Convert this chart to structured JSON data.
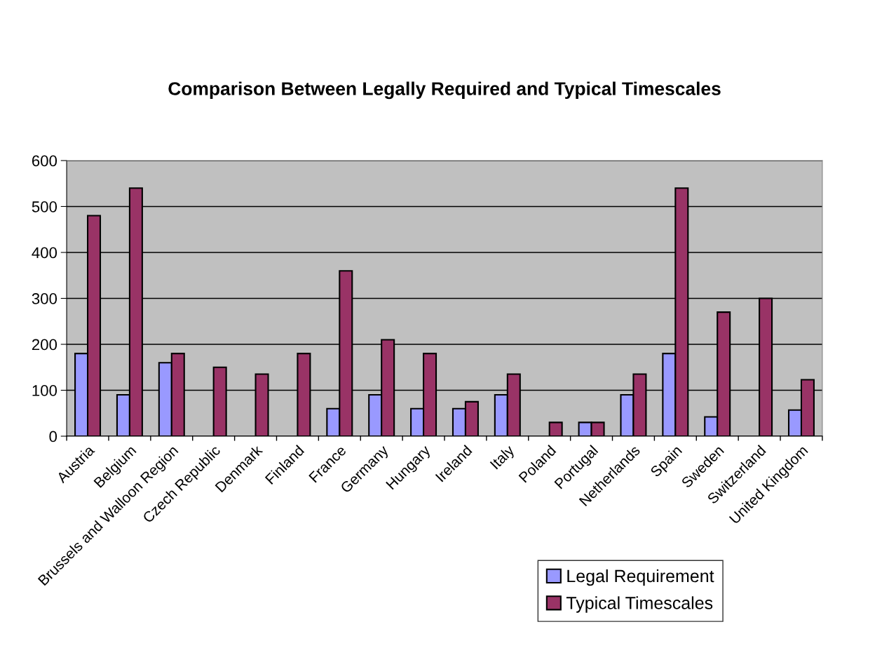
{
  "chart_data": {
    "type": "bar",
    "title": "Comparison Between Legally Required and Typical Timescales",
    "categories": [
      "Austria",
      "Belgium",
      "Brussels and Walloon Region",
      "Czech Republic",
      "Denmark",
      "Finland",
      "France",
      "Germany",
      "Hungary",
      "Ireland",
      "Italy",
      "Poland",
      "Portugal",
      "Netherlands",
      "Spain",
      "Sweden",
      "Switzerland",
      "United Kingdom"
    ],
    "series": [
      {
        "name": "Legal Requirement",
        "color": "#9999ff",
        "values": [
          180,
          90,
          160,
          null,
          null,
          null,
          60,
          90,
          60,
          60,
          90,
          null,
          30,
          90,
          180,
          42,
          null,
          57
        ]
      },
      {
        "name": "Typical Timescales",
        "color": "#993366",
        "values": [
          480,
          540,
          180,
          150,
          135,
          180,
          360,
          210,
          180,
          75,
          135,
          30,
          30,
          135,
          540,
          270,
          300,
          123
        ]
      }
    ],
    "ylim": [
      0,
      600
    ],
    "yticks": [
      0,
      100,
      200,
      300,
      400,
      500,
      600
    ],
    "grid": "y",
    "legend": "bottom right"
  }
}
